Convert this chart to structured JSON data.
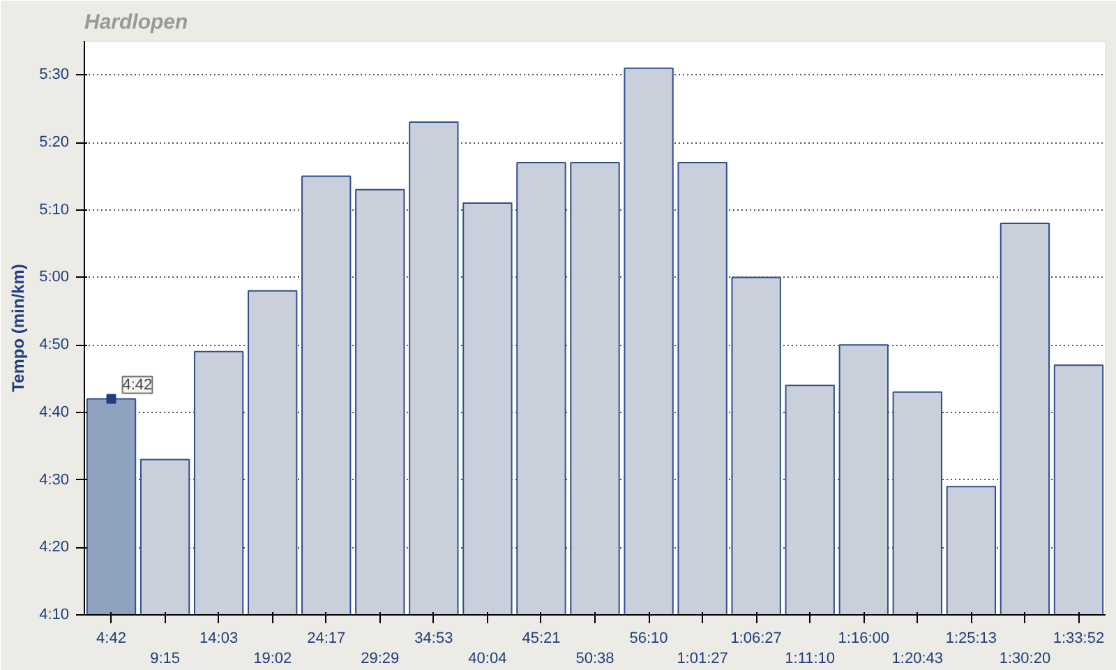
{
  "chart_data": {
    "type": "bar",
    "title": "Hardlopen",
    "ylabel": "Tempo (min/km)",
    "categories": [
      "4:42",
      "9:15",
      "14:03",
      "19:02",
      "24:17",
      "29:29",
      "34:53",
      "40:04",
      "45:21",
      "50:38",
      "56:10",
      "1:01:27",
      "1:06:27",
      "1:11:10",
      "1:16:00",
      "1:20:43",
      "1:25:13",
      "1:30:20",
      "1:33:52"
    ],
    "values": [
      282,
      273,
      289,
      298,
      315,
      313,
      323,
      311,
      317,
      317,
      331,
      317,
      300,
      284,
      290,
      283,
      269,
      308,
      287
    ],
    "colors": [
      "#8fa2bf",
      "#c9cfdb",
      "#c9cfdb",
      "#c9cfdb",
      "#c9cfdb",
      "#c9cfdb",
      "#c9cfdb",
      "#c9cfdb",
      "#c9cfdb",
      "#c9cfdb",
      "#c9cfdb",
      "#c9cfdb",
      "#c9cfdb",
      "#c9cfdb",
      "#c9cfdb",
      "#c9cfdb",
      "#c9cfdb",
      "#c9cfdb",
      "#c9cfdb"
    ],
    "ylim": [
      250,
      335
    ],
    "yticks": [
      {
        "value": 250,
        "label": "4:10"
      },
      {
        "value": 260,
        "label": "4:20"
      },
      {
        "value": 270,
        "label": "4:30"
      },
      {
        "value": 280,
        "label": "4:40"
      },
      {
        "value": 290,
        "label": "4:50"
      },
      {
        "value": 300,
        "label": "5:00"
      },
      {
        "value": 310,
        "label": "5:10"
      },
      {
        "value": 320,
        "label": "5:20"
      },
      {
        "value": 330,
        "label": "5:30"
      }
    ],
    "grid": "y",
    "annotations": [
      {
        "text": "4:42",
        "x": "4:42",
        "y": 282
      }
    ]
  }
}
